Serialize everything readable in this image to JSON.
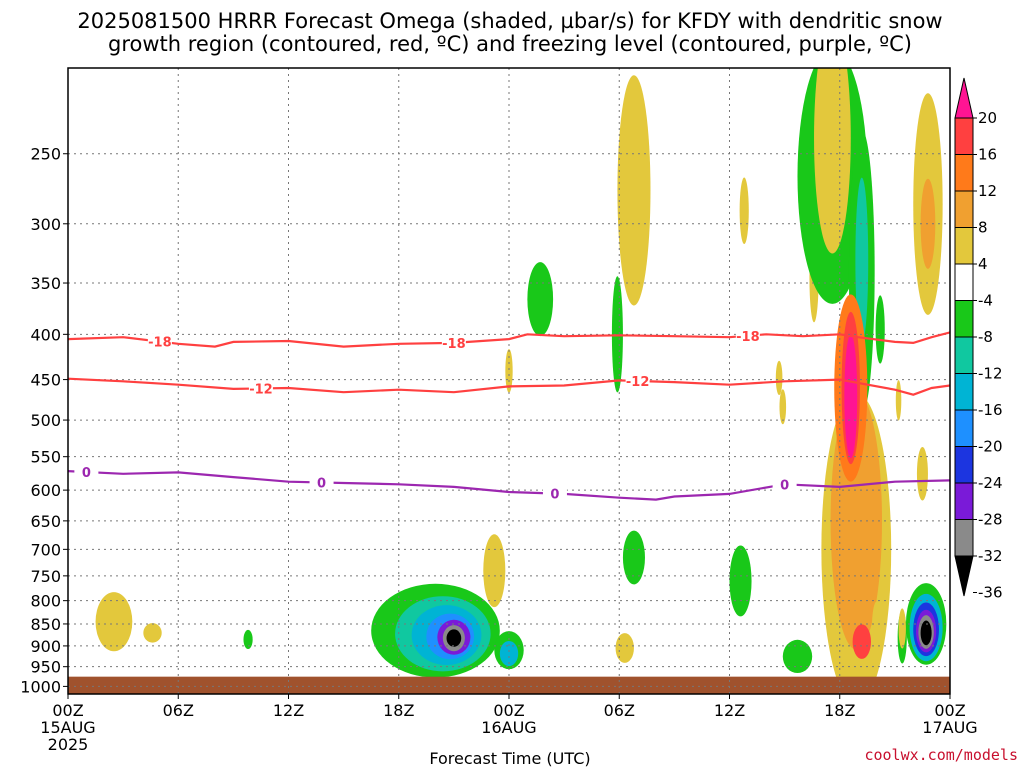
{
  "chart_data": {
    "type": "heatmap",
    "title_line1": "2025081500 HRRR Forecast Omega (shaded, µbar/s) for KFDY with dendritic snow",
    "title_line2": "growth region (contoured, red, ºC) and freezing level (contoured, purple, ºC)",
    "xlabel": "Forecast Time (UTC)",
    "x_ticks": [
      {
        "hour": 0,
        "label": "00Z",
        "sub": "15AUG",
        "sub2": "2025"
      },
      {
        "hour": 6,
        "label": "06Z"
      },
      {
        "hour": 12,
        "label": "12Z"
      },
      {
        "hour": 18,
        "label": "18Z"
      },
      {
        "hour": 24,
        "label": "00Z",
        "sub": "16AUG"
      },
      {
        "hour": 30,
        "label": "06Z"
      },
      {
        "hour": 36,
        "label": "12Z"
      },
      {
        "hour": 42,
        "label": "18Z"
      },
      {
        "hour": 48,
        "label": "00Z",
        "sub": "17AUG"
      }
    ],
    "y_ticks": [
      250,
      300,
      350,
      400,
      450,
      500,
      550,
      600,
      650,
      700,
      750,
      800,
      850,
      900,
      950,
      1000
    ],
    "y_range_hpa": [
      200,
      1020
    ],
    "ground_hpa": 975,
    "colorbar": {
      "labels": [
        "20",
        "16",
        "12",
        "8",
        "4",
        "-4",
        "-8",
        "-12",
        "-16",
        "-20",
        "-24",
        "-28",
        "-32",
        "-36"
      ],
      "colors": [
        "#ff1493",
        "#ff4040",
        "#ff7a1a",
        "#f0a030",
        "#e3c83c",
        "#ffffff",
        "#19c819",
        "#10c8a0",
        "#00b4d4",
        "#1e90ff",
        "#1c35e0",
        "#7a1ad8",
        "#8a8a8a",
        "#000000"
      ]
    },
    "series": [
      {
        "name": "-18",
        "color": "#ff4040",
        "label_hours": [
          5,
          21,
          37
        ],
        "points": [
          [
            0,
            405
          ],
          [
            3,
            403
          ],
          [
            6,
            410
          ],
          [
            8,
            413
          ],
          [
            9,
            408
          ],
          [
            12,
            407
          ],
          [
            15,
            413
          ],
          [
            18,
            410
          ],
          [
            21,
            409
          ],
          [
            24,
            405
          ],
          [
            25,
            400
          ],
          [
            27,
            402
          ],
          [
            30,
            401
          ],
          [
            33,
            402
          ],
          [
            36,
            403
          ],
          [
            38,
            400
          ],
          [
            40,
            402
          ],
          [
            42,
            400
          ],
          [
            43,
            403
          ],
          [
            45,
            408
          ],
          [
            46,
            409
          ],
          [
            47,
            403
          ],
          [
            48,
            398
          ]
        ]
      },
      {
        "name": "-12",
        "color": "#ff4040",
        "label_hours": [
          10.5,
          31
        ],
        "points": [
          [
            0,
            449
          ],
          [
            3,
            452
          ],
          [
            6,
            456
          ],
          [
            9,
            461
          ],
          [
            12,
            460
          ],
          [
            15,
            465
          ],
          [
            18,
            462
          ],
          [
            21,
            465
          ],
          [
            24,
            458
          ],
          [
            27,
            457
          ],
          [
            30,
            451
          ],
          [
            33,
            453
          ],
          [
            36,
            456
          ],
          [
            39,
            452
          ],
          [
            42,
            450
          ],
          [
            45,
            462
          ],
          [
            46,
            468
          ],
          [
            47,
            460
          ],
          [
            48,
            457
          ]
        ]
      },
      {
        "name": "0",
        "color": "#9c27b0",
        "label_hours": [
          1,
          13.8,
          26.5,
          39
        ],
        "points": [
          [
            0,
            571
          ],
          [
            3,
            575
          ],
          [
            6,
            573
          ],
          [
            9,
            580
          ],
          [
            12,
            587
          ],
          [
            15,
            589
          ],
          [
            18,
            591
          ],
          [
            21,
            595
          ],
          [
            24,
            603
          ],
          [
            27,
            606
          ],
          [
            30,
            612
          ],
          [
            32,
            615
          ],
          [
            33,
            610
          ],
          [
            36,
            606
          ],
          [
            39,
            591
          ],
          [
            42,
            595
          ],
          [
            45,
            587
          ],
          [
            48,
            585
          ]
        ]
      }
    ],
    "shaded_regions": [
      {
        "kind": "ellipse",
        "hour": 2.5,
        "hpa": 845,
        "rx_h": 1.0,
        "ry_hpa": 65,
        "color": "#e3c83c"
      },
      {
        "kind": "ellipse",
        "hour": 4.6,
        "hpa": 870,
        "rx_h": 0.5,
        "ry_hpa": 22,
        "color": "#e3c83c"
      },
      {
        "kind": "ellipse",
        "hour": 9.8,
        "hpa": 885,
        "rx_h": 0.25,
        "ry_hpa": 22,
        "color": "#19c819"
      },
      {
        "kind": "ellipse",
        "hour": 20.0,
        "hpa": 865,
        "rx_h": 3.5,
        "ry_hpa": 105,
        "color": "#19c819"
      },
      {
        "kind": "ellipse",
        "hour": 20.4,
        "hpa": 872,
        "rx_h": 2.6,
        "ry_hpa": 85,
        "color": "#10c8a0"
      },
      {
        "kind": "ellipse",
        "hour": 20.6,
        "hpa": 875,
        "rx_h": 1.9,
        "ry_hpa": 68,
        "color": "#00b4d4"
      },
      {
        "kind": "ellipse",
        "hour": 20.8,
        "hpa": 878,
        "rx_h": 1.3,
        "ry_hpa": 52,
        "color": "#1e90ff"
      },
      {
        "kind": "ellipse",
        "hour": 21.0,
        "hpa": 880,
        "rx_h": 0.9,
        "ry_hpa": 40,
        "color": "#7a1ad8"
      },
      {
        "kind": "ellipse",
        "hour": 21.0,
        "hpa": 882,
        "rx_h": 0.6,
        "ry_hpa": 30,
        "color": "#8a8a8a"
      },
      {
        "kind": "ellipse",
        "hour": 21.0,
        "hpa": 882,
        "rx_h": 0.4,
        "ry_hpa": 20,
        "color": "#000000"
      },
      {
        "kind": "ellipse",
        "hour": 23.2,
        "hpa": 740,
        "rx_h": 0.6,
        "ry_hpa": 70,
        "color": "#e3c83c"
      },
      {
        "kind": "ellipse",
        "hour": 24.0,
        "hpa": 910,
        "rx_h": 0.8,
        "ry_hpa": 45,
        "color": "#19c819"
      },
      {
        "kind": "ellipse",
        "hour": 24.0,
        "hpa": 918,
        "rx_h": 0.5,
        "ry_hpa": 30,
        "color": "#00b4d4"
      },
      {
        "kind": "ellipse",
        "hour": 25.7,
        "hpa": 365,
        "rx_h": 0.7,
        "ry_hpa": 35,
        "color": "#19c819"
      },
      {
        "kind": "ellipse",
        "hour": 24.0,
        "hpa": 440,
        "rx_h": 0.2,
        "ry_hpa": 25,
        "color": "#e3c83c"
      },
      {
        "kind": "ellipse",
        "hour": 30.8,
        "hpa": 275,
        "rx_h": 0.9,
        "ry_hpa": 80,
        "color": "#e3c83c"
      },
      {
        "kind": "ellipse",
        "hour": 29.9,
        "hpa": 400,
        "rx_h": 0.3,
        "ry_hpa": 60,
        "color": "#19c819"
      },
      {
        "kind": "ellipse",
        "hour": 30.3,
        "hpa": 905,
        "rx_h": 0.5,
        "ry_hpa": 35,
        "color": "#e3c83c"
      },
      {
        "kind": "ellipse",
        "hour": 30.8,
        "hpa": 715,
        "rx_h": 0.6,
        "ry_hpa": 50,
        "color": "#19c819"
      },
      {
        "kind": "ellipse",
        "hour": 36.6,
        "hpa": 760,
        "rx_h": 0.6,
        "ry_hpa": 70,
        "color": "#19c819"
      },
      {
        "kind": "ellipse",
        "hour": 36.8,
        "hpa": 290,
        "rx_h": 0.25,
        "ry_hpa": 25,
        "color": "#e3c83c"
      },
      {
        "kind": "ellipse",
        "hour": 38.7,
        "hpa": 448,
        "rx_h": 0.18,
        "ry_hpa": 20,
        "color": "#e3c83c"
      },
      {
        "kind": "ellipse",
        "hour": 38.9,
        "hpa": 483,
        "rx_h": 0.18,
        "ry_hpa": 22,
        "color": "#e3c83c"
      },
      {
        "kind": "ellipse",
        "hour": 39.7,
        "hpa": 925,
        "rx_h": 0.8,
        "ry_hpa": 40,
        "color": "#19c819"
      },
      {
        "kind": "ellipse",
        "hour": 40.6,
        "hpa": 345,
        "rx_h": 0.25,
        "ry_hpa": 40,
        "color": "#e3c83c"
      },
      {
        "kind": "ellipse",
        "hour": 41.6,
        "hpa": 265,
        "rx_h": 1.9,
        "ry_hpa": 85,
        "color": "#19c819"
      },
      {
        "kind": "ellipse",
        "hour": 43.2,
        "hpa": 340,
        "rx_h": 0.7,
        "ry_hpa": 120,
        "color": "#19c819"
      },
      {
        "kind": "ellipse",
        "hour": 43.2,
        "hpa": 330,
        "rx_h": 0.35,
        "ry_hpa": 70,
        "color": "#10c8a0"
      },
      {
        "kind": "ellipse",
        "hour": 41.6,
        "hpa": 240,
        "rx_h": 1.0,
        "ry_hpa": 70,
        "color": "#e3c83c"
      },
      {
        "kind": "ellipse",
        "hour": 42.9,
        "hpa": 700,
        "rx_h": 1.9,
        "ry_hpa": 270,
        "color": "#e3c83c"
      },
      {
        "kind": "ellipse",
        "hour": 42.9,
        "hpa": 650,
        "rx_h": 1.4,
        "ry_hpa": 210,
        "color": "#f0a030"
      },
      {
        "kind": "ellipse",
        "hour": 42.6,
        "hpa": 460,
        "rx_h": 0.9,
        "ry_hpa": 110,
        "color": "#ff7a1a"
      },
      {
        "kind": "ellipse",
        "hour": 42.6,
        "hpa": 460,
        "rx_h": 0.5,
        "ry_hpa": 90,
        "color": "#ff4040"
      },
      {
        "kind": "ellipse",
        "hour": 42.6,
        "hpa": 470,
        "rx_h": 0.35,
        "ry_hpa": 75,
        "color": "#ff1493"
      },
      {
        "kind": "ellipse",
        "hour": 43.2,
        "hpa": 890,
        "rx_h": 0.5,
        "ry_hpa": 40,
        "color": "#ff4040"
      },
      {
        "kind": "ellipse",
        "hour": 44.2,
        "hpa": 395,
        "rx_h": 0.25,
        "ry_hpa": 35,
        "color": "#19c819"
      },
      {
        "kind": "ellipse",
        "hour": 45.2,
        "hpa": 475,
        "rx_h": 0.15,
        "ry_hpa": 25,
        "color": "#e3c83c"
      },
      {
        "kind": "ellipse",
        "hour": 44.0,
        "hpa": 860,
        "rx_h": 0.25,
        "ry_hpa": 60,
        "color": "#e3c83c"
      },
      {
        "kind": "ellipse",
        "hour": 45.4,
        "hpa": 880,
        "rx_h": 0.25,
        "ry_hpa": 60,
        "color": "#19c819"
      },
      {
        "kind": "ellipse",
        "hour": 46.8,
        "hpa": 285,
        "rx_h": 0.8,
        "ry_hpa": 80,
        "color": "#e3c83c"
      },
      {
        "kind": "ellipse",
        "hour": 46.8,
        "hpa": 300,
        "rx_h": 0.4,
        "ry_hpa": 35,
        "color": "#f0a030"
      },
      {
        "kind": "ellipse",
        "hour": 46.5,
        "hpa": 575,
        "rx_h": 0.3,
        "ry_hpa": 40,
        "color": "#e3c83c"
      },
      {
        "kind": "ellipse",
        "hour": 46.7,
        "hpa": 850,
        "rx_h": 1.1,
        "ry_hpa": 90,
        "color": "#19c819"
      },
      {
        "kind": "ellipse",
        "hour": 46.7,
        "hpa": 858,
        "rx_h": 0.9,
        "ry_hpa": 75,
        "color": "#00b4d4"
      },
      {
        "kind": "ellipse",
        "hour": 46.7,
        "hpa": 862,
        "rx_h": 0.7,
        "ry_hpa": 60,
        "color": "#1c35e0"
      },
      {
        "kind": "ellipse",
        "hour": 46.7,
        "hpa": 866,
        "rx_h": 0.55,
        "ry_hpa": 48,
        "color": "#7a1ad8"
      },
      {
        "kind": "ellipse",
        "hour": 46.7,
        "hpa": 868,
        "rx_h": 0.42,
        "ry_hpa": 38,
        "color": "#8a8a8a"
      },
      {
        "kind": "ellipse",
        "hour": 46.7,
        "hpa": 870,
        "rx_h": 0.3,
        "ry_hpa": 28,
        "color": "#000000"
      },
      {
        "kind": "ellipse",
        "hour": 45.4,
        "hpa": 860,
        "rx_h": 0.2,
        "ry_hpa": 45,
        "color": "#e3c83c"
      }
    ],
    "credit": "coolwx.com/models"
  }
}
